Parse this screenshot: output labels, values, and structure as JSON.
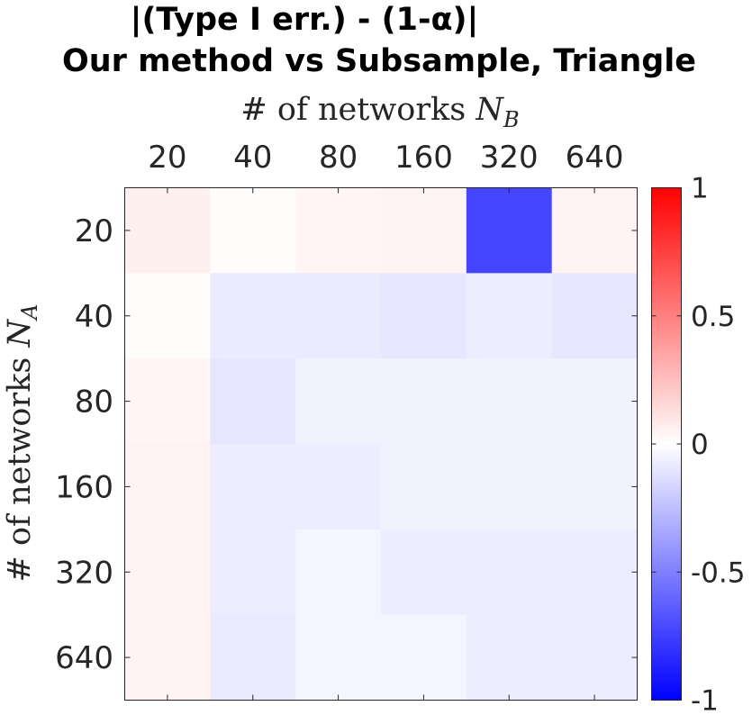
{
  "chart_data": {
    "type": "heatmap",
    "title_line1": "|(Type I err.) - (1-α)|",
    "title_line2": "Our method vs Subsample, Triangle",
    "xlabel": "# of networks N_B",
    "ylabel": "# of networks N_A",
    "x_categories": [
      "20",
      "40",
      "80",
      "160",
      "320",
      "640"
    ],
    "y_categories": [
      "20",
      "40",
      "80",
      "160",
      "320",
      "640"
    ],
    "x_axis_location": "top",
    "values": [
      [
        0.06,
        0.01,
        0.04,
        0.05,
        -0.73,
        0.05
      ],
      [
        0.01,
        -0.08,
        -0.08,
        -0.1,
        -0.07,
        -0.1
      ],
      [
        0.04,
        -0.1,
        -0.05,
        -0.05,
        -0.05,
        -0.05
      ],
      [
        0.05,
        -0.07,
        -0.07,
        -0.05,
        -0.05,
        -0.05
      ],
      [
        0.05,
        -0.07,
        -0.04,
        -0.07,
        -0.07,
        -0.07
      ],
      [
        0.05,
        -0.08,
        -0.04,
        -0.04,
        -0.07,
        -0.07
      ]
    ],
    "colormap": {
      "low": "#0000ff",
      "mid": "#ffffff",
      "high": "#ff0000"
    },
    "clim": [
      -1,
      1
    ],
    "colorbar_ticks": [
      "1",
      "0.5",
      "0",
      "-0.5",
      "-1"
    ],
    "colorbar_tick_values": [
      1,
      0.5,
      0,
      -0.5,
      -1
    ],
    "colorbar_location": "right",
    "grid": false
  }
}
